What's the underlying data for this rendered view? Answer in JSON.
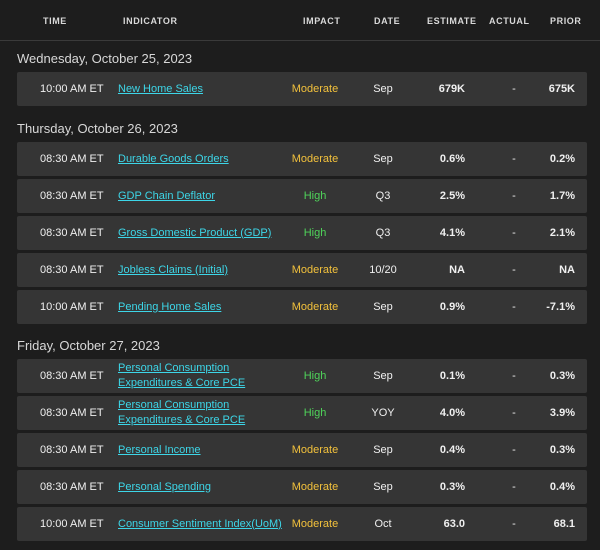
{
  "columns": {
    "time": "TIME",
    "indicator": "INDICATOR",
    "impact": "IMPACT",
    "date": "DATE",
    "estimate": "ESTIMATE",
    "actual": "ACTUAL",
    "prior": "PRIOR"
  },
  "colors": {
    "moderate": "#f2c13c",
    "high": "#4fd35a",
    "link": "#3dd6e8"
  },
  "days": [
    {
      "label": "Wednesday, October 25, 2023",
      "rows": [
        {
          "time": "10:00 AM ET",
          "indicator": "New Home Sales",
          "impact": "Moderate",
          "date": "Sep",
          "estimate": "679K",
          "actual": "-",
          "prior": "675K"
        }
      ]
    },
    {
      "label": "Thursday, October 26, 2023",
      "rows": [
        {
          "time": "08:30 AM ET",
          "indicator": "Durable Goods Orders",
          "impact": "Moderate",
          "date": "Sep",
          "estimate": "0.6%",
          "actual": "-",
          "prior": "0.2%"
        },
        {
          "time": "08:30 AM ET",
          "indicator": "GDP Chain Deflator",
          "impact": "High",
          "date": "Q3",
          "estimate": "2.5%",
          "actual": "-",
          "prior": "1.7%"
        },
        {
          "time": "08:30 AM ET",
          "indicator": "Gross Domestic Product (GDP)",
          "impact": "High",
          "date": "Q3",
          "estimate": "4.1%",
          "actual": "-",
          "prior": "2.1%"
        },
        {
          "time": "08:30 AM ET",
          "indicator": "Jobless Claims (Initial)",
          "impact": "Moderate",
          "date": "10/20",
          "estimate": "NA",
          "actual": "-",
          "prior": "NA"
        },
        {
          "time": "10:00 AM ET",
          "indicator": "Pending Home Sales",
          "impact": "Moderate",
          "date": "Sep",
          "estimate": "0.9%",
          "actual": "-",
          "prior": "-7.1%"
        }
      ]
    },
    {
      "label": "Friday, October 27, 2023",
      "rows": [
        {
          "time": "08:30 AM ET",
          "indicator": "Personal Consumption Expenditures & Core PCE",
          "impact": "High",
          "date": "Sep",
          "estimate": "0.1%",
          "actual": "-",
          "prior": "0.3%"
        },
        {
          "time": "08:30 AM ET",
          "indicator": "Personal Consumption Expenditures & Core PCE",
          "impact": "High",
          "date": "YOY",
          "estimate": "4.0%",
          "actual": "-",
          "prior": "3.9%"
        },
        {
          "time": "08:30 AM ET",
          "indicator": "Personal Income",
          "impact": "Moderate",
          "date": "Sep",
          "estimate": "0.4%",
          "actual": "-",
          "prior": "0.3%"
        },
        {
          "time": "08:30 AM ET",
          "indicator": "Personal Spending",
          "impact": "Moderate",
          "date": "Sep",
          "estimate": "0.3%",
          "actual": "-",
          "prior": "0.4%"
        },
        {
          "time": "10:00 AM ET",
          "indicator": "Consumer Sentiment Index(UoM)",
          "impact": "Moderate",
          "date": "Oct",
          "estimate": "63.0",
          "actual": "-",
          "prior": "68.1"
        }
      ]
    }
  ]
}
